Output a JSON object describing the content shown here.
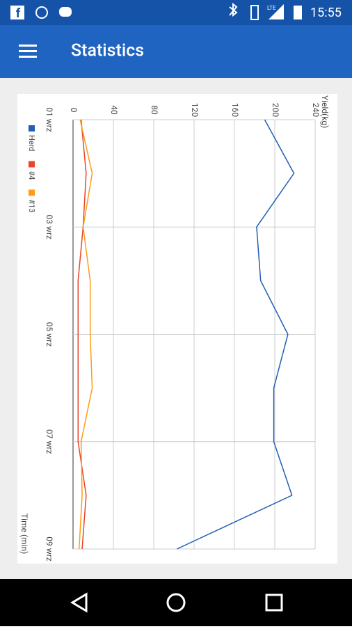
{
  "status_bar": {
    "network": "LTE",
    "time": "15:55"
  },
  "app_bar": {
    "title": "Statistics"
  },
  "chart_data": {
    "type": "line",
    "y_label": "Yield(kg)",
    "x_label": "Time (min)",
    "categories": [
      "01 wrz",
      null,
      "03 wrz",
      null,
      "05 wrz",
      null,
      "07 wrz",
      null,
      "09 wrz"
    ],
    "series": [
      {
        "name": "Herd",
        "color": "#1f5fb4",
        "values": [
          190,
          219,
          182,
          186,
          213,
          199,
          199,
          217,
          103
        ]
      },
      {
        "name": "#4",
        "color": "#e8442a",
        "values": [
          8,
          13,
          10,
          5,
          5,
          5,
          5,
          13,
          9
        ]
      },
      {
        "name": "#13",
        "color": "#ff9c12",
        "values": [
          7,
          19,
          10,
          17,
          17,
          19,
          8,
          9,
          6
        ]
      }
    ],
    "ylim": [
      0,
      240
    ],
    "yticks": [
      0,
      40,
      80,
      120,
      160,
      200,
      240
    ],
    "grid": true
  }
}
